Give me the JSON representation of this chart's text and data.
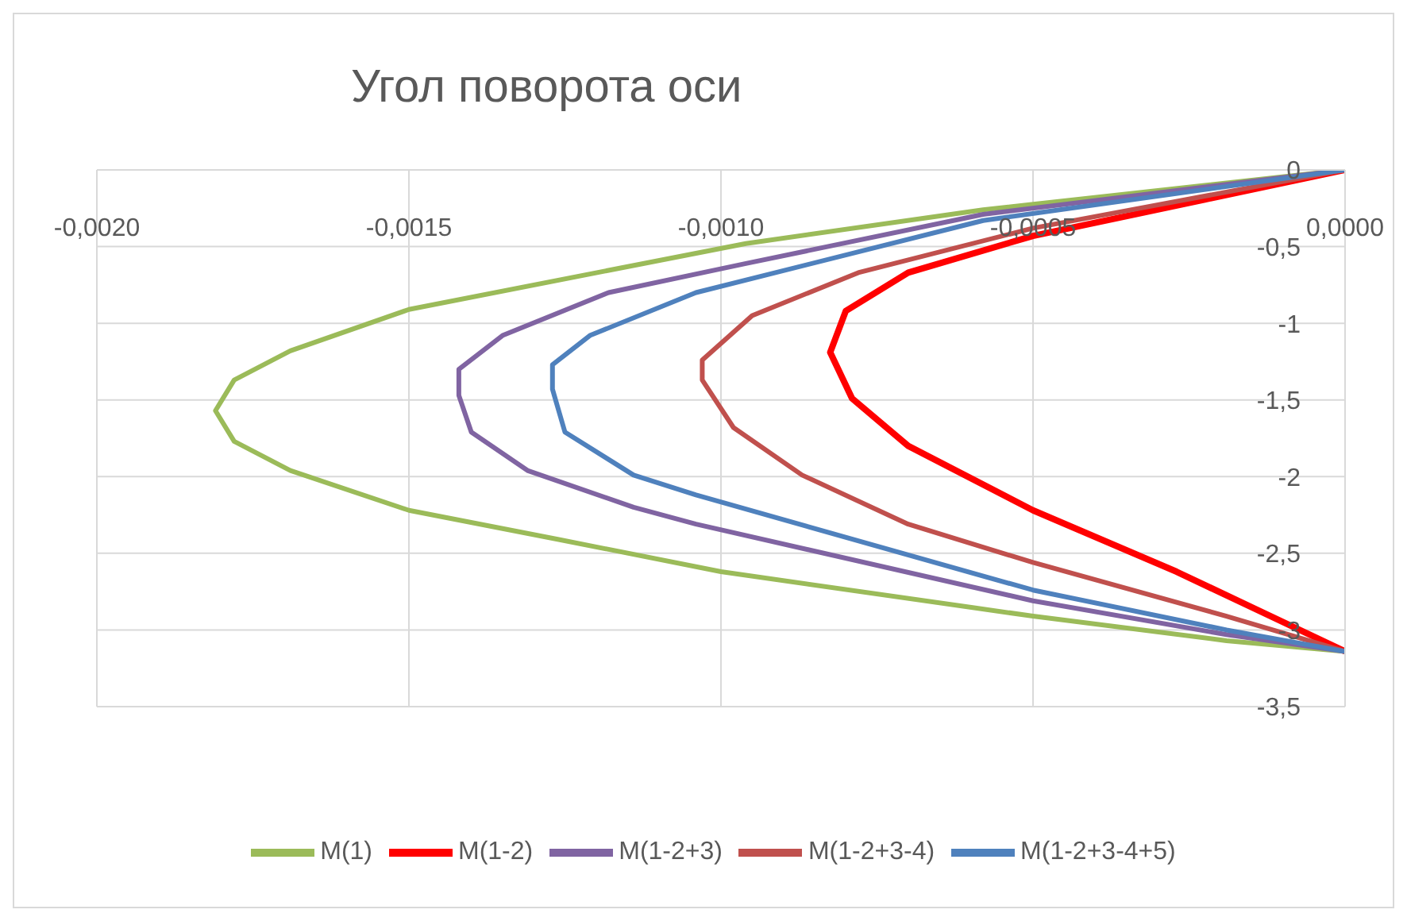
{
  "chart_data": {
    "type": "line",
    "title": "Угол поворота оси",
    "xlim": [
      -0.002,
      0
    ],
    "ylim": [
      -3.5,
      0
    ],
    "xticks": [
      {
        "value": -0.002,
        "label": "-0,0020"
      },
      {
        "value": -0.0015,
        "label": "-0,0015"
      },
      {
        "value": -0.001,
        "label": "-0,0010"
      },
      {
        "value": -0.0005,
        "label": "-0,0005"
      },
      {
        "value": 0,
        "label": "0,0000"
      }
    ],
    "yticks": [
      0,
      {
        "value": -0.5,
        "label": "-0,5"
      },
      -1,
      {
        "value": -1.5,
        "label": "-1,5"
      },
      -2,
      {
        "value": -2.5,
        "label": "-2,5"
      },
      -3,
      {
        "value": -3.5,
        "label": "-3,5"
      }
    ],
    "grid": true,
    "legend": "bottom",
    "series": [
      {
        "name": "M(1)",
        "color": "#9bbb59",
        "x": [
          0,
          -0.00058,
          -0.00096,
          -0.0015,
          -0.00169,
          -0.00178,
          -0.00181,
          -0.00178,
          -0.00169,
          -0.0015,
          -0.00126,
          -0.001,
          -0.0005,
          -0.00019,
          0
        ],
        "values": [
          0,
          -0.26,
          -0.48,
          -0.91,
          -1.18,
          -1.37,
          -1.57,
          -1.77,
          -1.96,
          -2.22,
          -2.41,
          -2.62,
          -2.91,
          -3.07,
          -3.14
        ]
      },
      {
        "name": "M(1-2)",
        "color": "#ff0000",
        "x": [
          0,
          -0.0005,
          -0.0007,
          -0.0008,
          -0.000825,
          -0.00079,
          -0.0007,
          -0.0005,
          -0.00027,
          0
        ],
        "values": [
          0,
          -0.43,
          -0.67,
          -0.92,
          -1.19,
          -1.49,
          -1.8,
          -2.22,
          -2.62,
          -3.14
        ]
      },
      {
        "name": "M(1-2+3)",
        "color": "#8064a2",
        "x": [
          0,
          -0.00058,
          -0.00096,
          -0.00118,
          -0.00135,
          -0.00142,
          -0.00142,
          -0.0014,
          -0.00131,
          -0.00114,
          -0.00104,
          -0.0005,
          -0.00019,
          0
        ],
        "values": [
          0,
          -0.29,
          -0.61,
          -0.8,
          -1.08,
          -1.3,
          -1.47,
          -1.71,
          -1.96,
          -2.2,
          -2.31,
          -2.81,
          -3.03,
          -3.14
        ]
      },
      {
        "name": "M(1-2+3-4)",
        "color": "#c0504d",
        "x": [
          0,
          -0.0005,
          -0.00078,
          -0.00095,
          -0.00103,
          -0.00103,
          -0.00098,
          -0.00087,
          -0.0007,
          -0.0005,
          -0.00019,
          0
        ],
        "values": [
          0,
          -0.38,
          -0.67,
          -0.95,
          -1.24,
          -1.37,
          -1.68,
          -1.99,
          -2.31,
          -2.56,
          -2.91,
          -3.14
        ]
      },
      {
        "name": "M(1-2+3-4+5)",
        "color": "#4f81bd",
        "x": [
          0,
          -0.00058,
          -0.00104,
          -0.00121,
          -0.00127,
          -0.00127,
          -0.00125,
          -0.00114,
          -0.00104,
          -0.0005,
          -0.00019,
          0
        ],
        "values": [
          0,
          -0.33,
          -0.8,
          -1.08,
          -1.27,
          -1.43,
          -1.71,
          -1.99,
          -2.12,
          -2.74,
          -3.0,
          -3.14
        ]
      }
    ]
  }
}
